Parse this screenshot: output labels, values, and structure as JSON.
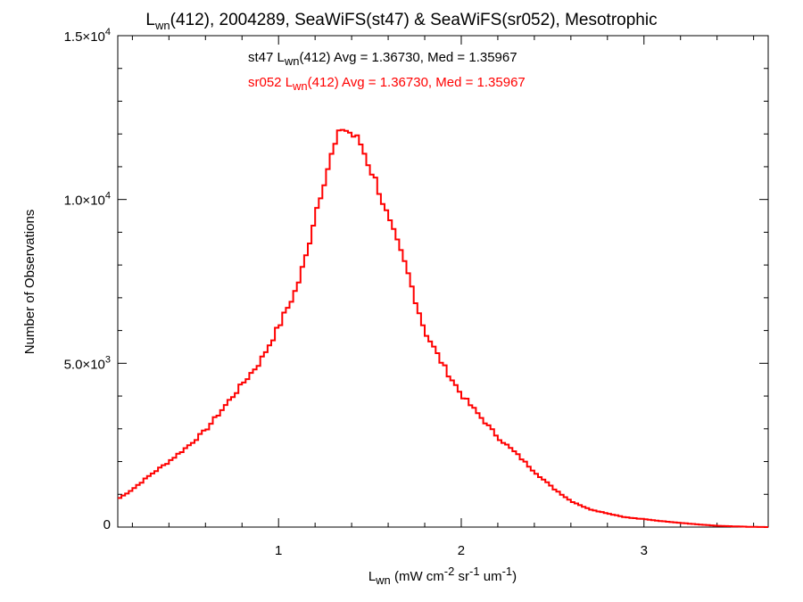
{
  "chart_data": {
    "type": "line",
    "title": {
      "main": "L",
      "sub": "wn",
      "rest": "(412), 2004289, SeaWiFS(st47) & SeaWiFS(sr052), Mesotrophic"
    },
    "xlabel": {
      "main": "L",
      "sub": "wn",
      "rest": " (mW cm",
      "sup1": "-2",
      "rest2": " sr",
      "sup2": "-1",
      "rest3": " um",
      "sup3": "-1",
      "rest4": ")"
    },
    "ylabel": "Number of Observations",
    "xlim": [
      0.12,
      3.68
    ],
    "ylim": [
      0,
      15000
    ],
    "x_ticks": [
      {
        "value": 1,
        "label": "1"
      },
      {
        "value": 2,
        "label": "2"
      },
      {
        "value": 3,
        "label": "3"
      }
    ],
    "y_ticks": [
      {
        "value": 0,
        "label": "0",
        "exp": ""
      },
      {
        "value": 5000,
        "label": "5.0×10",
        "exp": "3"
      },
      {
        "value": 10000,
        "label": "1.0×10",
        "exp": "4"
      },
      {
        "value": 15000,
        "label": "1.5×10",
        "exp": "4"
      }
    ],
    "annotations": [
      {
        "pre": "st47 L",
        "sub": "wn",
        "post": "(412) Avg = 1.36730, Med = 1.35967",
        "color": "#000000"
      },
      {
        "pre": "sr052 L",
        "sub": "wn",
        "post": "(412) Avg = 1.36730, Med = 1.35967",
        "color": "#ff0000"
      }
    ],
    "grid": false,
    "series": [
      {
        "color": "#ff0000",
        "step": true,
        "points": [
          [
            0.12,
            850
          ],
          [
            0.2,
            1150
          ],
          [
            0.3,
            1600
          ],
          [
            0.4,
            2000
          ],
          [
            0.5,
            2450
          ],
          [
            0.6,
            2950
          ],
          [
            0.7,
            3650
          ],
          [
            0.8,
            4350
          ],
          [
            0.9,
            5050
          ],
          [
            1.0,
            6100
          ],
          [
            1.1,
            7300
          ],
          [
            1.15,
            8250
          ],
          [
            1.2,
            9550
          ],
          [
            1.25,
            10600
          ],
          [
            1.3,
            11500
          ],
          [
            1.35,
            12200
          ],
          [
            1.4,
            12000
          ],
          [
            1.45,
            11700
          ],
          [
            1.5,
            11000
          ],
          [
            1.55,
            10300
          ],
          [
            1.6,
            9400
          ],
          [
            1.7,
            7900
          ],
          [
            1.8,
            6000
          ],
          [
            1.9,
            4950
          ],
          [
            2.0,
            4050
          ],
          [
            2.1,
            3400
          ],
          [
            2.2,
            2750
          ],
          [
            2.3,
            2250
          ],
          [
            2.4,
            1700
          ],
          [
            2.5,
            1200
          ],
          [
            2.6,
            800
          ],
          [
            2.7,
            550
          ],
          [
            2.8,
            420
          ],
          [
            2.9,
            300
          ],
          [
            3.0,
            240
          ],
          [
            3.1,
            180
          ],
          [
            3.2,
            130
          ],
          [
            3.3,
            80
          ],
          [
            3.4,
            40
          ],
          [
            3.5,
            20
          ],
          [
            3.6,
            5
          ],
          [
            3.68,
            0
          ]
        ]
      }
    ]
  }
}
